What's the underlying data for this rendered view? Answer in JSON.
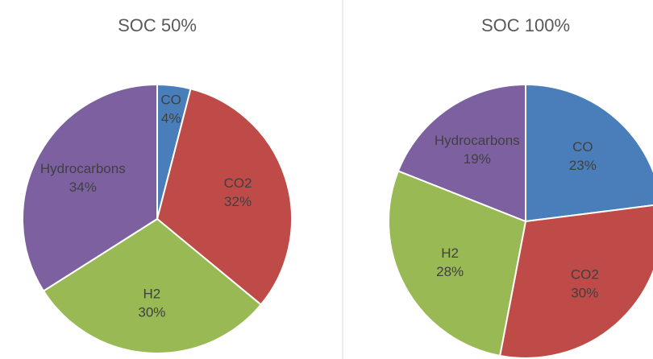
{
  "chart_data": [
    {
      "type": "pie",
      "title": "SOC 50%",
      "categories": [
        "CO",
        "CO2",
        "H2",
        "Hydrocarbons"
      ],
      "values": [
        4,
        32,
        30,
        34
      ],
      "value_labels": [
        "4%",
        "32%",
        "30%",
        "34%"
      ],
      "colors": [
        "#4a7ebb",
        "#be4b48",
        "#98b954",
        "#7d60a0"
      ]
    },
    {
      "type": "pie",
      "title": "SOC 100%",
      "categories": [
        "CO",
        "CO2",
        "H2",
        "Hydrocarbons"
      ],
      "values": [
        23,
        30,
        28,
        19
      ],
      "value_labels": [
        "23%",
        "30%",
        "28%",
        "19%"
      ],
      "colors": [
        "#4a7ebb",
        "#be4b48",
        "#98b954",
        "#7d60a0"
      ]
    }
  ]
}
